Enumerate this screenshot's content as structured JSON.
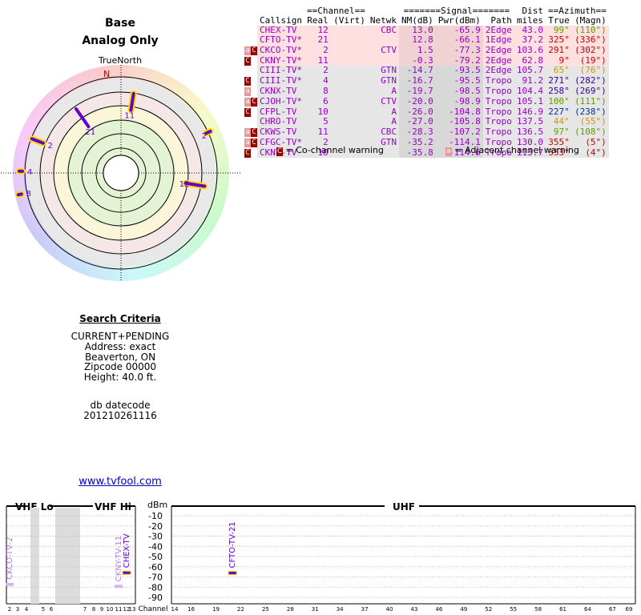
{
  "header": {
    "title": "Base",
    "subtitle": "Analog Only",
    "north_label": "TrueNorth",
    "north_marker": "N"
  },
  "criteria": {
    "heading": "Search Criteria",
    "lines": [
      "CURRENT+PENDING",
      "Address: exact",
      "Beaverton, ON",
      "Zipcode 00000",
      "Height: 40.0 ft."
    ],
    "db_label": "db datecode",
    "db_value": "201210261116"
  },
  "site_link": "www.tvfool.com",
  "table": {
    "group_headers": {
      "channel": "==Channel==",
      "signal": "=======Signal=======",
      "dist": "Dist",
      "azimuth": "==Azimuth=="
    },
    "columns": [
      "Callsign",
      "Real",
      "(Virt)",
      "Netwk",
      "NM(dB)",
      "Pwr(dBm)",
      "Path",
      "miles",
      "True",
      "(Magn)"
    ],
    "rows": [
      {
        "warn": "",
        "callsign": "CHEX-TV",
        "real": "12",
        "virt": "",
        "netwk": "CBC",
        "nm": "13.0",
        "pwr": "-65.9",
        "path": "2Edge",
        "dist": "43.0",
        "true": "99°",
        "magn": "(110°)",
        "color": "#9900cc",
        "bg": "#ffe0e0",
        "az_color": "#669900"
      },
      {
        "warn": "",
        "callsign": "CFTO-TV*",
        "real": "21",
        "virt": "",
        "netwk": "",
        "nm": "12.8",
        "pwr": "-66.1",
        "path": "1Edge",
        "dist": "37.2",
        "true": "325°",
        "magn": "(336°)",
        "color": "#9900cc",
        "bg": "#ffe0e0",
        "az_color": "#cc0000"
      },
      {
        "warn": "aC",
        "callsign": "CKCO-TV*",
        "real": "2",
        "virt": "",
        "netwk": "CTV",
        "nm": "1.5",
        "pwr": "-77.3",
        "path": "2Edge",
        "dist": "103.6",
        "true": "291°",
        "magn": "(302°)",
        "color": "#9900cc",
        "bg": "#ffe0e0",
        "az_color": "#cc0000"
      },
      {
        "warn": "C",
        "callsign": "CKNY-TV*",
        "real": "11",
        "virt": "",
        "netwk": "",
        "nm": "-0.3",
        "pwr": "-79.2",
        "path": "2Edge",
        "dist": "62.8",
        "true": "9°",
        "magn": "(19°)",
        "color": "#9900cc",
        "bg": "#ffe0e0",
        "az_color": "#cc0000"
      },
      {
        "warn": "",
        "callsign": "CIII-TV*",
        "real": "2",
        "virt": "",
        "netwk": "GTN",
        "nm": "-14.7",
        "pwr": "-93.5",
        "path": "2Edge",
        "dist": "105.7",
        "true": "65°",
        "magn": "(76°)",
        "color": "#9900cc",
        "bg": "#e6e6e6",
        "az_color": "#cc9900"
      },
      {
        "warn": "C",
        "callsign": "CIII-TV*",
        "real": "4",
        "virt": "",
        "netwk": "GTN",
        "nm": "-16.7",
        "pwr": "-95.5",
        "path": "Tropo",
        "dist": "91.2",
        "true": "271°",
        "magn": "(282°)",
        "color": "#9900cc",
        "bg": "#e6e6e6",
        "az_color": "#330099"
      },
      {
        "warn": "a",
        "callsign": "CKNX-TV",
        "real": "8",
        "virt": "",
        "netwk": "A",
        "nm": "-19.7",
        "pwr": "-98.5",
        "path": "Tropo",
        "dist": "104.4",
        "true": "258°",
        "magn": "(269°)",
        "color": "#9900cc",
        "bg": "#e6e6e6",
        "az_color": "#330099"
      },
      {
        "warn": "aC",
        "callsign": "CJOH-TV*",
        "real": "6",
        "virt": "",
        "netwk": "CTV",
        "nm": "-20.0",
        "pwr": "-98.9",
        "path": "Tropo",
        "dist": "105.1",
        "true": "100°",
        "magn": "(111°)",
        "color": "#9900cc",
        "bg": "#e6e6e6",
        "az_color": "#669900"
      },
      {
        "warn": "C",
        "callsign": "CFPL-TV",
        "real": "10",
        "virt": "",
        "netwk": "A",
        "nm": "-26.0",
        "pwr": "-104.8",
        "path": "Tropo",
        "dist": "146.9",
        "true": "227°",
        "magn": "(238°)",
        "color": "#9900cc",
        "bg": "#e6e6e6",
        "az_color": "#003399"
      },
      {
        "warn": "",
        "callsign": "CHRO-TV",
        "real": "5",
        "virt": "",
        "netwk": "A",
        "nm": "-27.0",
        "pwr": "-105.8",
        "path": "Tropo",
        "dist": "137.5",
        "true": "44°",
        "magn": "(55°)",
        "color": "#9900cc",
        "bg": "#e6e6e6",
        "az_color": "#cc9900"
      },
      {
        "warn": "aC",
        "callsign": "CKWS-TV",
        "real": "11",
        "virt": "",
        "netwk": "CBC",
        "nm": "-28.3",
        "pwr": "-107.2",
        "path": "Tropo",
        "dist": "136.5",
        "true": "97°",
        "magn": "(108°)",
        "color": "#9900cc",
        "bg": "#e6e6e6",
        "az_color": "#669900"
      },
      {
        "warn": "aC",
        "callsign": "CFGC-TV*",
        "real": "2",
        "virt": "",
        "netwk": "GTN",
        "nm": "-35.2",
        "pwr": "-114.1",
        "path": "Tropo",
        "dist": "130.0",
        "true": "355°",
        "magn": "(5°)",
        "color": "#9900cc",
        "bg": "#e6e6e6",
        "az_color": "#cc0000"
      },
      {
        "warn": "C",
        "callsign": "CKNY-TV",
        "real": "10",
        "virt": "",
        "netwk": "",
        "nm": "-35.8",
        "pwr": "-114.6",
        "path": "Tropo",
        "dist": "113.7",
        "true": "353°",
        "magn": "(4°)",
        "color": "#9900cc",
        "bg": "#e6e6e6",
        "az_color": "#cc0000"
      }
    ]
  },
  "legend": {
    "co_badge": "C",
    "co_label": "= Co-channel warning",
    "adj_badge": "a",
    "adj_label": "= Adjacent channel warning"
  },
  "chart_data": [
    {
      "type": "scatter",
      "title": "",
      "description_axis": "polar",
      "points": [
        {
          "label": "11",
          "azimuth_deg": 9,
          "ring_level": 2.6,
          "length": 0.35
        },
        {
          "label": "21",
          "azimuth_deg": 325,
          "ring_level": 2.5,
          "length": 0.45
        },
        {
          "label": "2",
          "azimuth_deg": 291,
          "ring_level": 3.3,
          "length": 0.25
        },
        {
          "label": "2",
          "azimuth_deg": 65,
          "ring_level": 3.45,
          "length": 0.1
        },
        {
          "label": "4",
          "azimuth_deg": 271,
          "ring_level": 3.6,
          "length": 0.05
        },
        {
          "label": "8",
          "azimuth_deg": 258,
          "ring_level": 3.75,
          "length": 0.02
        },
        {
          "label": "12",
          "azimuth_deg": 99,
          "ring_level": 2.8,
          "length": 0.4
        }
      ]
    },
    {
      "type": "bar",
      "ylabel": "dBm",
      "xlabel": "Channel",
      "ylim": [
        -90,
        -10
      ],
      "y_ticks": [
        "-10",
        "-20",
        "-30",
        "-40",
        "-50",
        "-60",
        "-70",
        "-80",
        "-90"
      ],
      "band_labels": [
        "VHF Lo",
        "VHF Hi",
        "UHF"
      ],
      "vhf_channels": [
        "2",
        "3",
        "4",
        "5",
        "6",
        "7",
        "8",
        "9",
        "10",
        "11",
        "12",
        "13"
      ],
      "uhf_channels": [
        "14",
        "16",
        "19",
        "22",
        "25",
        "28",
        "31",
        "34",
        "37",
        "40",
        "43",
        "46",
        "49",
        "52",
        "55",
        "58",
        "61",
        "64",
        "67",
        "69"
      ],
      "channel_label": "Channel",
      "stations": [
        {
          "label": "CKCO-TV-2",
          "channel": 2,
          "pwr": -77.3
        },
        {
          "label": "CKNY-TV-11",
          "channel": 11,
          "pwr": -79.2
        },
        {
          "label": "CHEX-TV",
          "channel": 12,
          "pwr": -65.9
        },
        {
          "label": "CFTO-TV-21",
          "channel": 21,
          "pwr": -66.1
        }
      ]
    }
  ]
}
